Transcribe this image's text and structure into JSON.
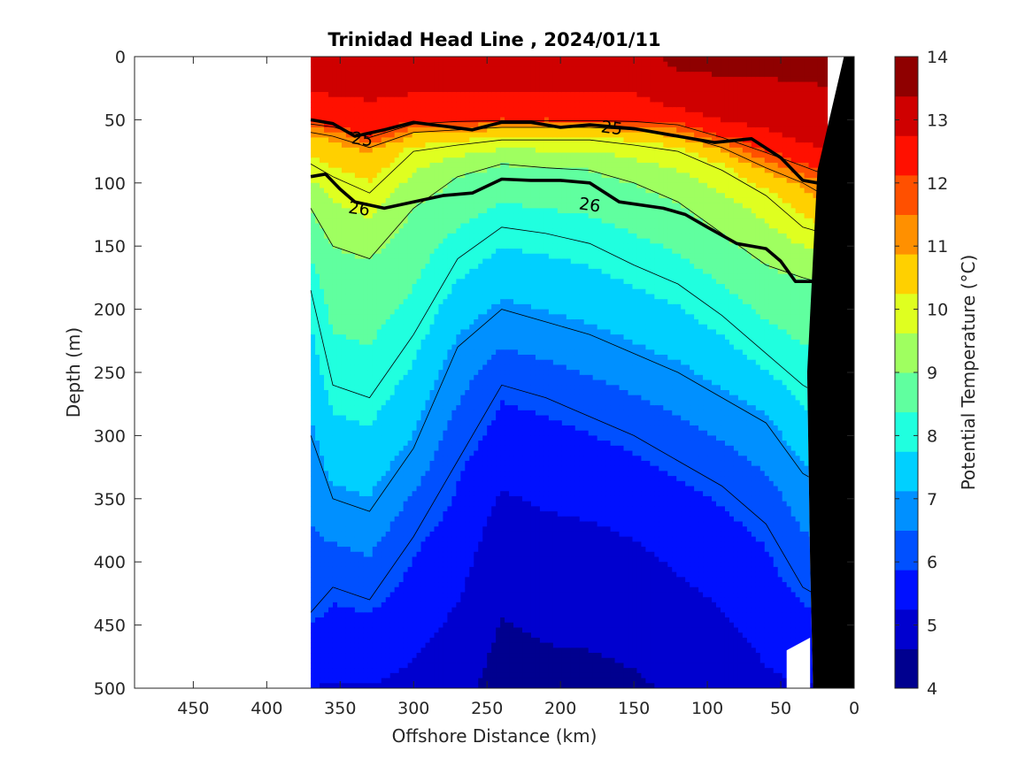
{
  "chart_data": {
    "type": "heatmap",
    "title": "Trinidad Head Line , 2024/01/11",
    "xlabel": "Offshore Distance (km)",
    "ylabel": "Depth (m)",
    "colorbar_label": "Potential Temperature (°C)",
    "xlim": [
      490,
      0
    ],
    "ylim": [
      0,
      500
    ],
    "x_reversed": true,
    "y_reversed": true,
    "xticks": [
      450,
      400,
      350,
      300,
      250,
      200,
      150,
      100,
      50,
      0
    ],
    "yticks": [
      0,
      50,
      100,
      150,
      200,
      250,
      300,
      350,
      400,
      450,
      500
    ],
    "colorbar": {
      "min": 4,
      "max": 14,
      "ticks": [
        4,
        5,
        6,
        7,
        8,
        9,
        10,
        11,
        12,
        13,
        14
      ],
      "colors": [
        "#00008f",
        "#0000cf",
        "#0010ff",
        "#0050ff",
        "#0090ff",
        "#00d0ff",
        "#20ffdf",
        "#60ff9f",
        "#9fff60",
        "#dfff20",
        "#ffd000",
        "#ff9000",
        "#ff5000",
        "#ff1000",
        "#cf0000",
        "#8f0000"
      ]
    },
    "data_extent_km": [
      18,
      370
    ],
    "profiles": [
      {
        "x": 370,
        "isotherms": [
          [
            12.5,
            50
          ],
          [
            11,
            60
          ],
          [
            10,
            85
          ],
          [
            9,
            120
          ],
          [
            8,
            185
          ],
          [
            7,
            300
          ],
          [
            6,
            440
          ],
          [
            5,
            520
          ]
        ]
      },
      {
        "x": 355,
        "isotherms": [
          [
            12.5,
            52
          ],
          [
            11,
            63
          ],
          [
            10,
            95
          ],
          [
            9,
            150
          ],
          [
            8,
            260
          ],
          [
            7,
            350
          ],
          [
            6,
            420
          ],
          [
            5,
            520
          ]
        ]
      },
      {
        "x": 330,
        "isotherms": [
          [
            12.5,
            60
          ],
          [
            11,
            72
          ],
          [
            10,
            108
          ],
          [
            9,
            160
          ],
          [
            8,
            270
          ],
          [
            7,
            360
          ],
          [
            6,
            430
          ],
          [
            5,
            520
          ]
        ]
      },
      {
        "x": 300,
        "isotherms": [
          [
            12.5,
            50
          ],
          [
            11,
            60
          ],
          [
            10,
            75
          ],
          [
            9,
            120
          ],
          [
            8,
            220
          ],
          [
            7,
            310
          ],
          [
            6,
            380
          ],
          [
            5,
            510
          ]
        ]
      },
      {
        "x": 270,
        "isotherms": [
          [
            12.5,
            48
          ],
          [
            11,
            58
          ],
          [
            10,
            70
          ],
          [
            9,
            95
          ],
          [
            8,
            160
          ],
          [
            7,
            230
          ],
          [
            6,
            320
          ],
          [
            5,
            470
          ]
        ]
      },
      {
        "x": 240,
        "isotherms": [
          [
            12.5,
            48
          ],
          [
            11,
            56
          ],
          [
            10,
            66
          ],
          [
            9,
            85
          ],
          [
            8,
            135
          ],
          [
            7,
            200
          ],
          [
            6,
            260
          ],
          [
            5,
            370
          ]
        ]
      },
      {
        "x": 210,
        "isotherms": [
          [
            12.5,
            48
          ],
          [
            11,
            56
          ],
          [
            10,
            66
          ],
          [
            9,
            88
          ],
          [
            8,
            140
          ],
          [
            7,
            210
          ],
          [
            6,
            270
          ],
          [
            5,
            390
          ]
        ]
      },
      {
        "x": 180,
        "isotherms": [
          [
            12.5,
            48
          ],
          [
            11,
            56
          ],
          [
            10,
            66
          ],
          [
            9,
            90
          ],
          [
            8,
            148
          ],
          [
            7,
            220
          ],
          [
            6,
            285
          ],
          [
            5,
            395
          ]
        ]
      },
      {
        "x": 150,
        "isotherms": [
          [
            12.5,
            48
          ],
          [
            11,
            58
          ],
          [
            10,
            70
          ],
          [
            9,
            100
          ],
          [
            8,
            165
          ],
          [
            7,
            235
          ],
          [
            6,
            300
          ],
          [
            5,
            410
          ]
        ]
      },
      {
        "x": 120,
        "isotherms": [
          [
            13,
            30
          ],
          [
            12.5,
            50
          ],
          [
            11,
            62
          ],
          [
            10,
            75
          ],
          [
            9,
            115
          ],
          [
            8,
            180
          ],
          [
            7,
            250
          ],
          [
            6,
            320
          ],
          [
            5,
            440
          ]
        ]
      },
      {
        "x": 90,
        "isotherms": [
          [
            13,
            40
          ],
          [
            12.5,
            60
          ],
          [
            11,
            72
          ],
          [
            10,
            90
          ],
          [
            9,
            140
          ],
          [
            8,
            205
          ],
          [
            7,
            270
          ],
          [
            6,
            340
          ],
          [
            5,
            470
          ]
        ]
      },
      {
        "x": 60,
        "isotherms": [
          [
            13,
            45
          ],
          [
            12.5,
            70
          ],
          [
            11,
            88
          ],
          [
            10,
            110
          ],
          [
            9,
            165
          ],
          [
            8,
            235
          ],
          [
            7,
            290
          ],
          [
            6,
            370
          ],
          [
            5,
            520
          ]
        ]
      },
      {
        "x": 35,
        "isotherms": [
          [
            13,
            55
          ],
          [
            12.5,
            80
          ],
          [
            11,
            100
          ],
          [
            10,
            135
          ],
          [
            9,
            175
          ],
          [
            8,
            260
          ],
          [
            7,
            330
          ],
          [
            6,
            420
          ],
          [
            5,
            520
          ]
        ]
      },
      {
        "x": 20,
        "isotherms": [
          [
            13,
            60
          ],
          [
            12.5,
            85
          ],
          [
            11,
            110
          ],
          [
            10,
            140
          ],
          [
            9,
            180
          ],
          [
            8,
            270
          ],
          [
            7,
            340
          ],
          [
            6,
            430
          ],
          [
            5,
            520
          ]
        ]
      }
    ],
    "sigma_theta_contours": [
      {
        "label": "25",
        "points": [
          [
            370,
            50
          ],
          [
            355,
            53
          ],
          [
            340,
            63
          ],
          [
            320,
            58
          ],
          [
            300,
            52
          ],
          [
            280,
            55
          ],
          [
            260,
            58
          ],
          [
            240,
            52
          ],
          [
            220,
            52
          ],
          [
            200,
            56
          ],
          [
            180,
            54
          ],
          [
            150,
            57
          ],
          [
            120,
            63
          ],
          [
            95,
            68
          ],
          [
            70,
            65
          ],
          [
            50,
            80
          ],
          [
            35,
            98
          ],
          [
            25,
            100
          ],
          [
            18,
            88
          ]
        ]
      },
      {
        "label": "26",
        "points": [
          [
            370,
            95
          ],
          [
            360,
            93
          ],
          [
            350,
            105
          ],
          [
            340,
            115
          ],
          [
            320,
            120
          ],
          [
            300,
            115
          ],
          [
            280,
            110
          ],
          [
            260,
            108
          ],
          [
            240,
            97
          ],
          [
            220,
            98
          ],
          [
            200,
            98
          ],
          [
            180,
            100
          ],
          [
            160,
            115
          ],
          [
            130,
            120
          ],
          [
            115,
            125
          ],
          [
            100,
            135
          ],
          [
            80,
            148
          ],
          [
            60,
            152
          ],
          [
            50,
            162
          ],
          [
            40,
            178
          ],
          [
            25,
            178
          ],
          [
            18,
            176
          ]
        ]
      }
    ],
    "contour_labels": [
      {
        "text": "25",
        "x": 335,
        "y": 65
      },
      {
        "text": "25",
        "x": 165,
        "y": 56
      },
      {
        "text": "26",
        "x": 337,
        "y": 120
      },
      {
        "text": "26",
        "x": 180,
        "y": 117
      }
    ],
    "bathymetry": {
      "color": "#000000",
      "points": [
        [
          0,
          0
        ],
        [
          0,
          500
        ],
        [
          28,
          500
        ],
        [
          30,
          400
        ],
        [
          32,
          250
        ],
        [
          25,
          90
        ],
        [
          7,
          0
        ]
      ]
    },
    "mask_notch": {
      "points": [
        [
          30,
          500
        ],
        [
          46,
          500
        ],
        [
          46,
          470
        ],
        [
          30,
          460
        ]
      ]
    }
  }
}
